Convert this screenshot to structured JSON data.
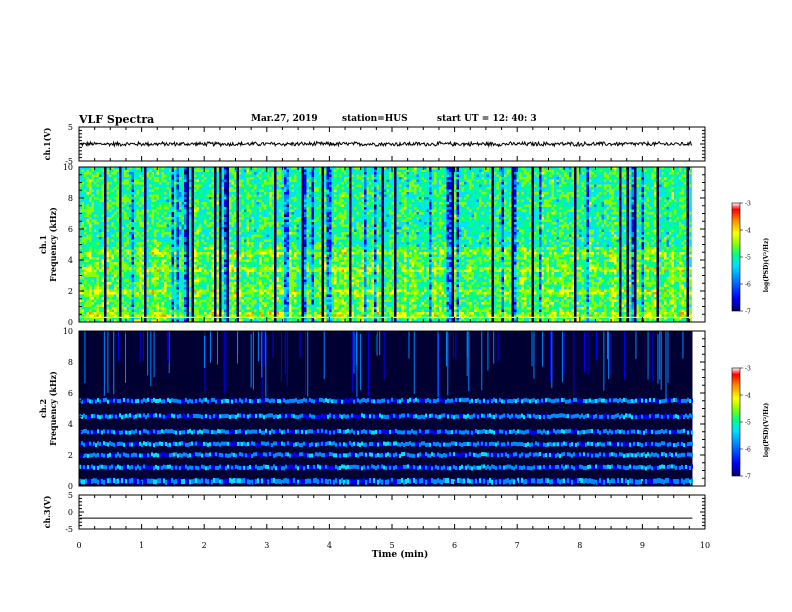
{
  "header": {
    "title": "VLF Spectra",
    "date": "Mar.27, 2019",
    "station": "station=HUS",
    "start": "start  UT =   12: 40: 3"
  },
  "chart_data": {
    "type": "heatmap",
    "xlabel": "Time  (min)",
    "xlim": [
      0,
      10
    ],
    "xticks": [
      "0",
      "1",
      "2",
      "3",
      "4",
      "5",
      "6",
      "7",
      "8",
      "9",
      "10"
    ],
    "panels": [
      {
        "id": "ch1-waveform",
        "type": "line",
        "ylabel": "ch.1(V)",
        "ylim": [
          -5,
          5
        ],
        "yticks": [
          "5",
          "-5"
        ],
        "data_end_min": 9.8,
        "mean_value": 0.0,
        "amplitude": 0.6
      },
      {
        "id": "ch1-spectrogram",
        "type": "heatmap",
        "ylabel": "ch.1\nFrequency  (kHz)",
        "ylim": [
          0,
          10
        ],
        "yticks": [
          "0",
          "2",
          "4",
          "6",
          "8",
          "10"
        ],
        "data_end_min": 9.8,
        "colorbar": {
          "label": "log(PSD)(V²/Hz)",
          "range": [
            -7,
            -3
          ],
          "ticks": [
            "-3",
            "-4",
            "-5",
            "-6",
            "-7"
          ]
        }
      },
      {
        "id": "ch2-spectrogram",
        "type": "heatmap",
        "ylabel": "ch.2\nFrequency  (kHz)",
        "ylim": [
          0,
          10
        ],
        "yticks": [
          "0",
          "2",
          "4",
          "6",
          "8",
          "10"
        ],
        "data_end_min": 9.8,
        "band_centers_khz": [
          0.3,
          1.2,
          2.0,
          2.7,
          3.5,
          4.5,
          5.5
        ],
        "colorbar": {
          "label": "log(PSD)(V²/Hz)",
          "range": [
            -7,
            -3
          ],
          "ticks": [
            "-3",
            "-4",
            "-5",
            "-6",
            "-7"
          ]
        }
      },
      {
        "id": "ch3-waveform",
        "type": "line",
        "ylabel": "ch.3(V)",
        "ylim": [
          -5,
          5
        ],
        "yticks": [
          "5",
          "0",
          "-5"
        ],
        "data_end_min": 9.8,
        "mean_value": -1.8,
        "amplitude": 0.0
      }
    ],
    "colormap": [
      "#000066",
      "#0000ff",
      "#0088ff",
      "#00e0ff",
      "#00ff88",
      "#88ff00",
      "#ffff00",
      "#ff8800",
      "#ff0000",
      "#ffffff"
    ]
  }
}
